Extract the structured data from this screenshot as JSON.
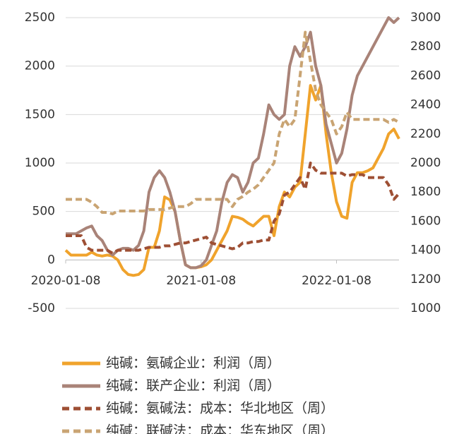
{
  "chart_data": {
    "type": "line",
    "categories": [
      "2020-01-08",
      null,
      null,
      null,
      null,
      null,
      null,
      null,
      null,
      null,
      null,
      null,
      null,
      null,
      null,
      null,
      null,
      null,
      null,
      null,
      null,
      null,
      null,
      null,
      null,
      null,
      "2021-01-08",
      null,
      null,
      null,
      null,
      null,
      null,
      null,
      null,
      null,
      null,
      null,
      null,
      null,
      null,
      null,
      null,
      null,
      null,
      null,
      null,
      null,
      null,
      null,
      null,
      null,
      "2022-01-08",
      null,
      null,
      null,
      null,
      null,
      null,
      null,
      null,
      null,
      null,
      null,
      null
    ],
    "ylim": [
      -500,
      2500
    ],
    "yticks": [
      -500,
      0,
      500,
      1000,
      1500,
      2000,
      2500
    ],
    "y2lim": [
      1000,
      3000
    ],
    "y2ticks": [
      1000,
      1200,
      1400,
      1600,
      1800,
      2000,
      2200,
      2400,
      2600,
      2800,
      3000
    ],
    "grid": true,
    "legend": "bottom",
    "series": [
      {
        "name": "纯碱：氨碱企业：利润（周）",
        "color": "#f0a32c",
        "style": "solid",
        "axis": "y",
        "values": [
          100,
          50,
          50,
          50,
          50,
          80,
          50,
          40,
          50,
          40,
          0,
          -100,
          -150,
          -160,
          -150,
          -100,
          130,
          130,
          300,
          650,
          620,
          500,
          200,
          -50,
          -80,
          -80,
          -70,
          -50,
          0,
          100,
          200,
          300,
          450,
          440,
          420,
          380,
          350,
          400,
          450,
          450,
          250,
          550,
          700,
          650,
          750,
          800,
          1300,
          1800,
          1650,
          1800,
          1300,
          900,
          600,
          450,
          430,
          800,
          900,
          900,
          920,
          950,
          1050,
          1150,
          1300,
          1350,
          1250
        ]
      },
      {
        "name": "纯碱：联产企业：利润（周）",
        "color": "#a98378",
        "style": "solid",
        "axis": "y",
        "values": [
          270,
          270,
          270,
          300,
          330,
          350,
          250,
          200,
          100,
          50,
          100,
          120,
          120,
          100,
          150,
          300,
          700,
          850,
          920,
          850,
          700,
          500,
          200,
          -50,
          -80,
          -80,
          -60,
          0,
          150,
          300,
          600,
          800,
          880,
          850,
          700,
          800,
          1000,
          1050,
          1300,
          1600,
          1500,
          1450,
          1500,
          2000,
          2200,
          2100,
          2200,
          2350,
          2000,
          1800,
          1400,
          1200,
          1000,
          1100,
          1350,
          1700,
          1900,
          2000,
          2100,
          2200,
          2300,
          2400,
          2500,
          2450,
          2500
        ]
      },
      {
        "name": "纯碱：氨碱法：成本：华北地区（周）",
        "color": "#9e4f34",
        "style": "dashed",
        "axis": "y2",
        "values": [
          1500,
          1500,
          1500,
          1500,
          1420,
          1400,
          1400,
          1400,
          1400,
          1380,
          1400,
          1400,
          1400,
          1400,
          1400,
          1410,
          1420,
          1420,
          1420,
          1430,
          1430,
          1440,
          1450,
          1450,
          1460,
          1470,
          1480,
          1490,
          1450,
          1440,
          1430,
          1420,
          1410,
          1420,
          1450,
          1450,
          1460,
          1460,
          1470,
          1470,
          1600,
          1650,
          1780,
          1800,
          1850,
          1900,
          1820,
          2000,
          1950,
          1930,
          1930,
          1930,
          1930,
          1930,
          1910,
          1920,
          1920,
          1920,
          1900,
          1900,
          1900,
          1900,
          1850,
          1750,
          1790
        ]
      },
      {
        "name": "纯碱：联碱法：成本：华东地区（周）",
        "color": "#c9a473",
        "style": "dashed",
        "axis": "y2",
        "values": [
          1750,
          1750,
          1750,
          1750,
          1750,
          1730,
          1700,
          1660,
          1660,
          1650,
          1670,
          1670,
          1670,
          1670,
          1670,
          1670,
          1680,
          1680,
          1680,
          1680,
          1690,
          1700,
          1700,
          1700,
          1720,
          1750,
          1750,
          1750,
          1750,
          1750,
          1750,
          1750,
          1700,
          1750,
          1770,
          1800,
          1820,
          1850,
          1900,
          1950,
          2000,
          2200,
          2300,
          2250,
          2300,
          2600,
          2900,
          2700,
          2500,
          2400,
          2350,
          2300,
          2200,
          2250,
          2350,
          2300,
          2300,
          2300,
          2300,
          2300,
          2300,
          2300,
          2280,
          2300,
          2280
        ]
      }
    ]
  }
}
